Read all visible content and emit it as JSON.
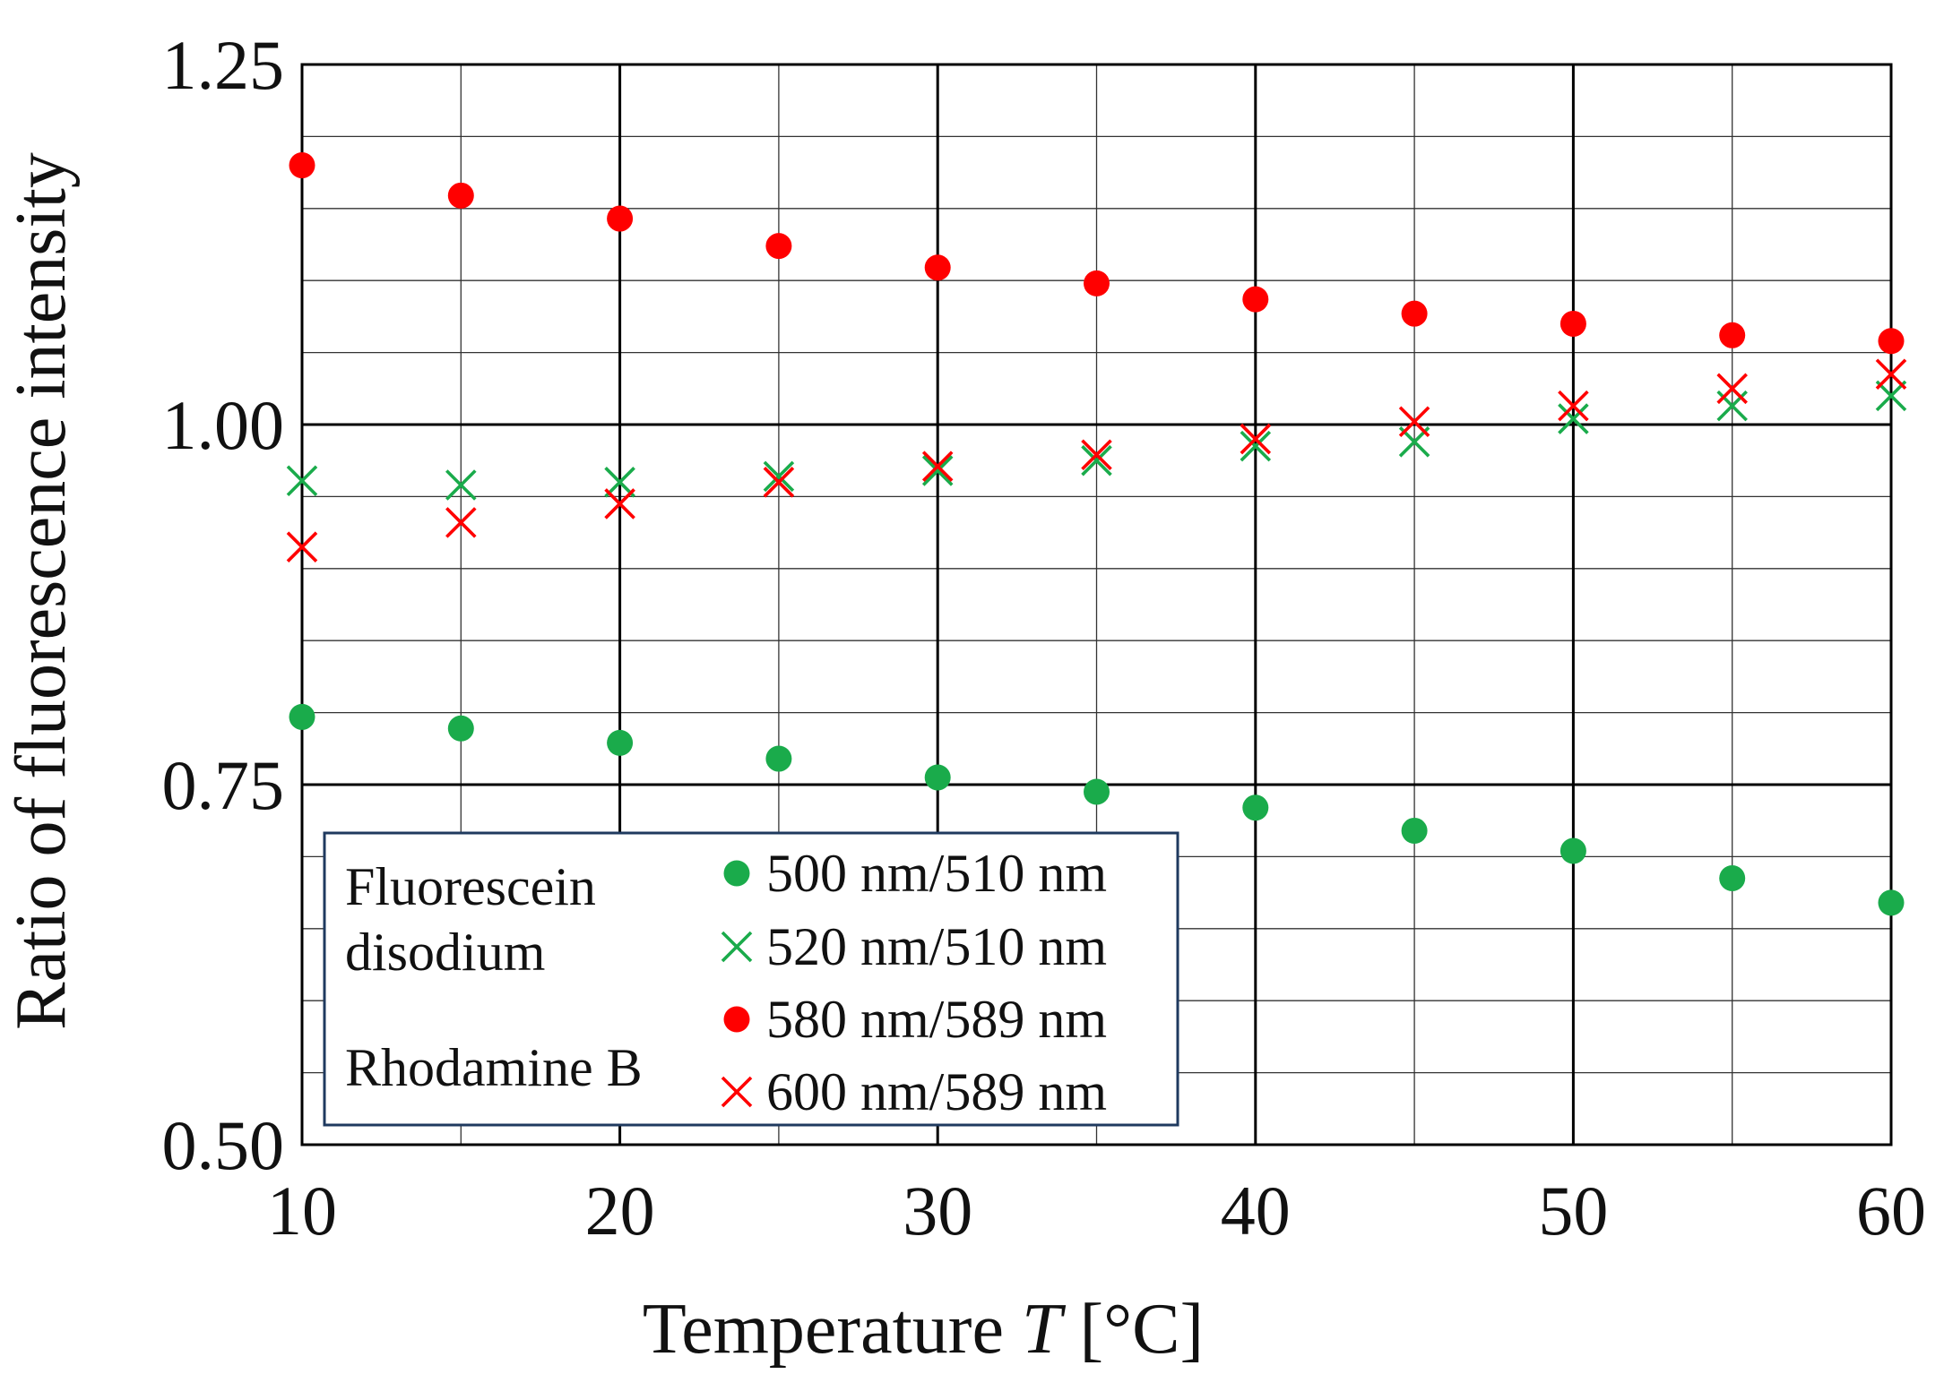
{
  "chart_data": {
    "type": "scatter",
    "title": "",
    "xlabel": "Temperature",
    "xlabel_symbol": "T",
    "xlabel_unit": "[°C]",
    "ylabel": "Ratio of fluorescence intensity",
    "xlim": [
      10,
      60
    ],
    "ylim": [
      0.5,
      1.25
    ],
    "x_major_ticks": [
      10,
      20,
      30,
      40,
      50,
      60
    ],
    "x_minor_ticks": [
      15,
      25,
      35,
      45,
      55
    ],
    "x_tick_labels": [
      "10",
      "20",
      "30",
      "40",
      "50",
      "60"
    ],
    "y_major_ticks": [
      0.5,
      0.75,
      1.0,
      1.25
    ],
    "y_tick_labels": [
      "0.50",
      "0.75",
      "1.00",
      "1.25"
    ],
    "y_minor_step": 0.05,
    "grid": true,
    "x": [
      10,
      15,
      20,
      25,
      30,
      35,
      40,
      45,
      50,
      55,
      60
    ],
    "series": [
      {
        "name": "500 nm/510 nm",
        "group": "Fluorescein disodium",
        "marker": "circle",
        "color": "#1aab4b",
        "values": [
          0.797,
          0.789,
          0.779,
          0.768,
          0.755,
          0.745,
          0.734,
          0.718,
          0.704,
          0.685,
          0.668
        ]
      },
      {
        "name": "520 nm/510 nm",
        "group": "Fluorescein disodium",
        "marker": "x",
        "color": "#1aab4b",
        "values": [
          0.961,
          0.958,
          0.96,
          0.964,
          0.968,
          0.975,
          0.985,
          0.988,
          1.004,
          1.013,
          1.02
        ]
      },
      {
        "name": "580 nm/589 nm",
        "group": "Rhodamine B",
        "marker": "circle",
        "color": "#ff0000",
        "values": [
          1.18,
          1.159,
          1.143,
          1.124,
          1.109,
          1.098,
          1.087,
          1.077,
          1.07,
          1.062,
          1.058
        ]
      },
      {
        "name": "600 nm/589 nm",
        "group": "Rhodamine B",
        "marker": "x",
        "color": "#ff0000",
        "values": [
          0.915,
          0.932,
          0.945,
          0.96,
          0.971,
          0.979,
          0.99,
          1.002,
          1.013,
          1.025,
          1.035
        ]
      }
    ],
    "legend": {
      "placement": "bottom-left",
      "groups": [
        "Fluorescein",
        "disodium",
        "Rhodamine B"
      ],
      "border_color": "#1f3a5f"
    }
  }
}
